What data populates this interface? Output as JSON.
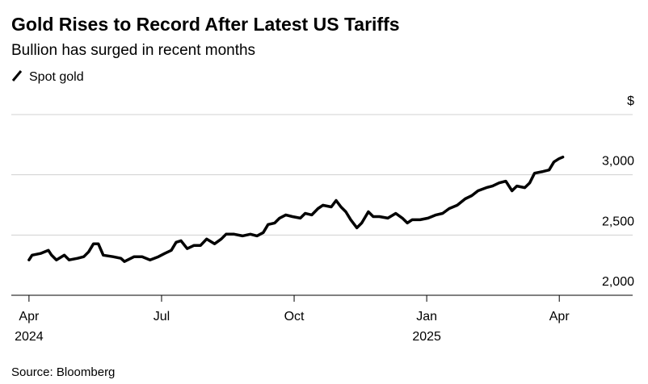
{
  "chart_data": {
    "type": "line",
    "title": "Gold Rises to Record After Latest US Tariffs",
    "subtitle": "Bullion has surged in recent months",
    "source": "Source: Bloomberg",
    "x": [
      0,
      0.07,
      0.26,
      0.44,
      0.51,
      0.62,
      0.8,
      0.91,
      1.1,
      1.24,
      1.35,
      1.46,
      1.57,
      1.68,
      1.9,
      2.08,
      2.16,
      2.38,
      2.56,
      2.74,
      2.93,
      3.07,
      3.22,
      3.33,
      3.44,
      3.58,
      3.73,
      3.88,
      4.02,
      4.2,
      4.35,
      4.46,
      4.64,
      4.83,
      5.01,
      5.16,
      5.3,
      5.41,
      5.56,
      5.67,
      5.81,
      5.96,
      6.14,
      6.25,
      6.4,
      6.54,
      6.65,
      6.84,
      6.95,
      7.06,
      7.17,
      7.28,
      7.42,
      7.53,
      7.68,
      7.79,
      7.93,
      8.12,
      8.3,
      8.45,
      8.56,
      8.67,
      8.85,
      9.03,
      9.21,
      9.36,
      9.51,
      9.69,
      9.87,
      10.02,
      10.16,
      10.35,
      10.49,
      10.64,
      10.79,
      10.93,
      11.04,
      11.22,
      11.33,
      11.44,
      11.63,
      11.77,
      11.88,
      11.99,
      12.08
    ],
    "series": [
      {
        "name": "Spot gold",
        "color": "#000000",
        "values": [
          2293,
          2333,
          2347,
          2373,
          2333,
          2293,
          2333,
          2293,
          2307,
          2320,
          2360,
          2427,
          2427,
          2333,
          2320,
          2307,
          2280,
          2320,
          2320,
          2293,
          2320,
          2347,
          2373,
          2440,
          2453,
          2387,
          2413,
          2413,
          2467,
          2427,
          2467,
          2507,
          2507,
          2493,
          2507,
          2493,
          2520,
          2587,
          2600,
          2640,
          2667,
          2653,
          2640,
          2680,
          2667,
          2720,
          2747,
          2733,
          2787,
          2733,
          2693,
          2627,
          2560,
          2600,
          2693,
          2653,
          2653,
          2640,
          2680,
          2640,
          2600,
          2627,
          2627,
          2640,
          2667,
          2680,
          2720,
          2747,
          2800,
          2827,
          2867,
          2893,
          2907,
          2933,
          2947,
          2867,
          2907,
          2893,
          2933,
          3013,
          3027,
          3040,
          3107,
          3133,
          3147
        ]
      }
    ],
    "xlim": [
      -0.4,
      13.66
    ],
    "xticks": [
      {
        "value": 0,
        "label": "Apr\n2024"
      },
      {
        "value": 3,
        "label": "Jul"
      },
      {
        "value": 6,
        "label": "Oct"
      },
      {
        "value": 9,
        "label": "Jan\n2025"
      },
      {
        "value": 12,
        "label": "Apr"
      }
    ],
    "ylim": [
      2000,
      3500
    ],
    "yticks": [
      {
        "value": 2000,
        "label": "2,000"
      },
      {
        "value": 2500,
        "label": "2,500"
      },
      {
        "value": 3000,
        "label": "3,000"
      },
      {
        "value": 3500,
        "label": "$"
      }
    ],
    "grid": true
  }
}
